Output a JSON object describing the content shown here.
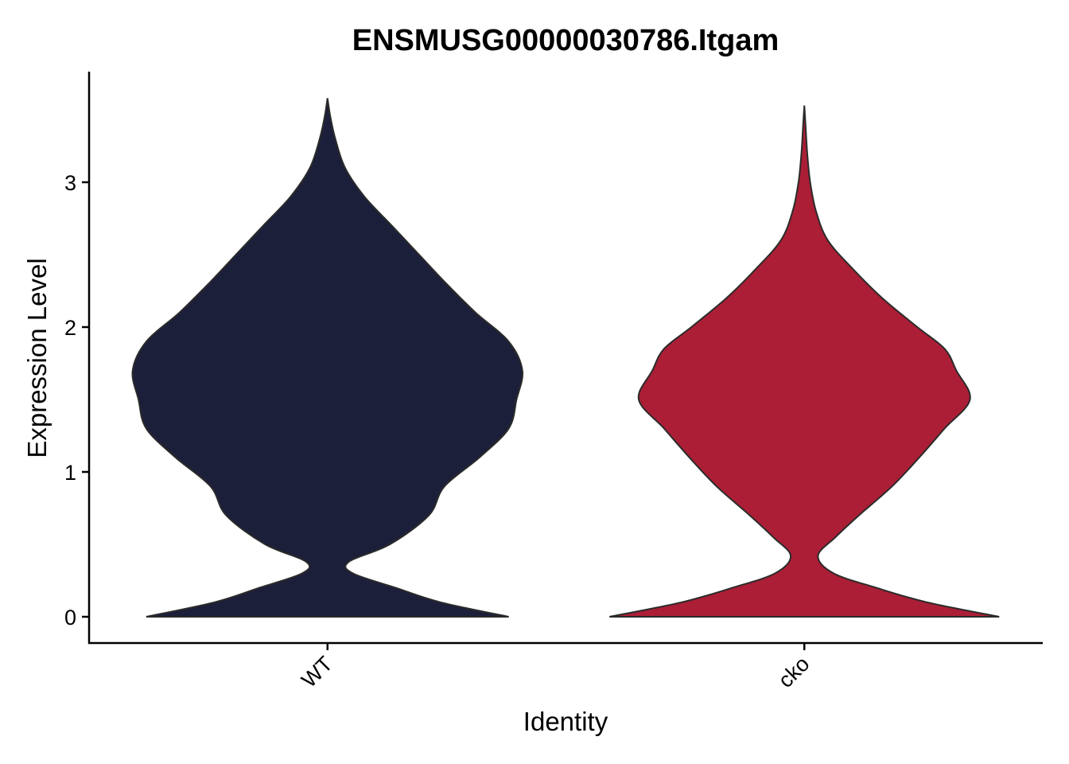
{
  "chart_data": {
    "type": "violin",
    "title": "ENSMUSG00000030786.Itgam",
    "xlabel": "Identity",
    "ylabel": "Expression Level",
    "categories": [
      "WT",
      "cko"
    ],
    "yticks": [
      0,
      1,
      2,
      3
    ],
    "ylim": [
      -0.17,
      3.75
    ],
    "grid": false,
    "legend": "none",
    "series": [
      {
        "category": "WT",
        "color": "#1c1f3a",
        "density_profile": [
          [
            0.0,
            0.93
          ],
          [
            0.1,
            0.58
          ],
          [
            0.2,
            0.35
          ],
          [
            0.3,
            0.13
          ],
          [
            0.38,
            0.11
          ],
          [
            0.5,
            0.32
          ],
          [
            0.7,
            0.52
          ],
          [
            0.9,
            0.6
          ],
          [
            1.1,
            0.78
          ],
          [
            1.3,
            0.93
          ],
          [
            1.5,
            0.97
          ],
          [
            1.7,
            1.0
          ],
          [
            1.9,
            0.93
          ],
          [
            2.1,
            0.76
          ],
          [
            2.3,
            0.61
          ],
          [
            2.5,
            0.47
          ],
          [
            2.7,
            0.33
          ],
          [
            2.9,
            0.19
          ],
          [
            3.1,
            0.09
          ],
          [
            3.3,
            0.04
          ],
          [
            3.45,
            0.015
          ],
          [
            3.58,
            0.0
          ]
        ]
      },
      {
        "category": "cko",
        "color": "#ab1e35",
        "density_profile": [
          [
            0.0,
            1.0
          ],
          [
            0.1,
            0.63
          ],
          [
            0.2,
            0.37
          ],
          [
            0.3,
            0.15
          ],
          [
            0.42,
            0.07
          ],
          [
            0.55,
            0.16
          ],
          [
            0.7,
            0.28
          ],
          [
            0.9,
            0.45
          ],
          [
            1.1,
            0.59
          ],
          [
            1.3,
            0.72
          ],
          [
            1.5,
            0.85
          ],
          [
            1.7,
            0.78
          ],
          [
            1.85,
            0.72
          ],
          [
            2.0,
            0.58
          ],
          [
            2.2,
            0.4
          ],
          [
            2.4,
            0.25
          ],
          [
            2.6,
            0.12
          ],
          [
            2.8,
            0.06
          ],
          [
            3.0,
            0.03
          ],
          [
            3.2,
            0.015
          ],
          [
            3.4,
            0.006
          ],
          [
            3.53,
            0.0
          ]
        ]
      }
    ]
  }
}
